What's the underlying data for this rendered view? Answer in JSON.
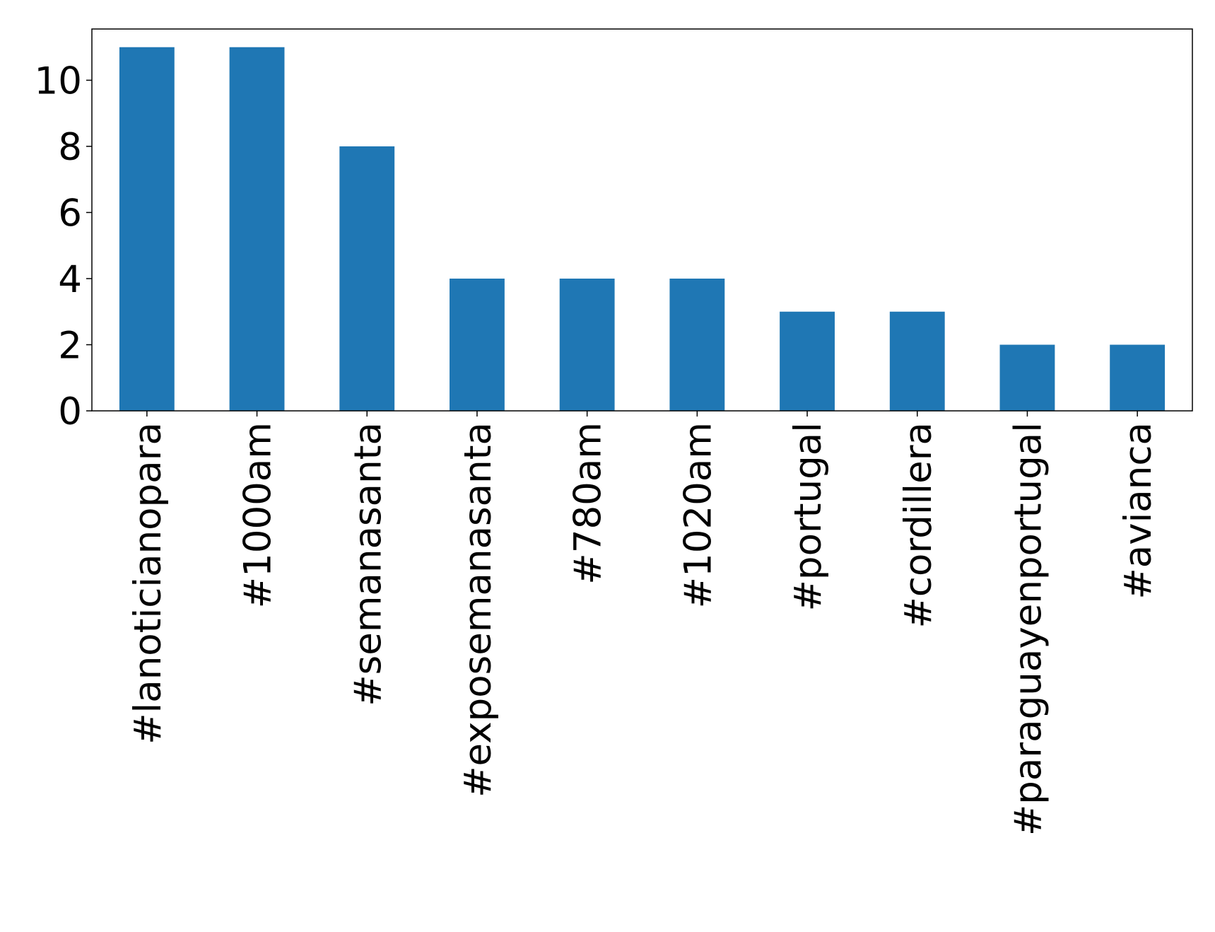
{
  "chart_data": {
    "type": "bar",
    "categories": [
      "#lanoticianopara",
      "#1000am",
      "#semanasanta",
      "#exposemanasanta",
      "#780am",
      "#1020am",
      "#portugal",
      "#cordillera",
      "#paraguayenportugal",
      "#avianca"
    ],
    "values": [
      11,
      11,
      8,
      4,
      4,
      4,
      3,
      3,
      2,
      2
    ],
    "color": "#1f77b4",
    "ylim": [
      0,
      11.55
    ],
    "yticks": [
      0,
      2,
      4,
      6,
      8,
      10
    ],
    "grid": false
  }
}
